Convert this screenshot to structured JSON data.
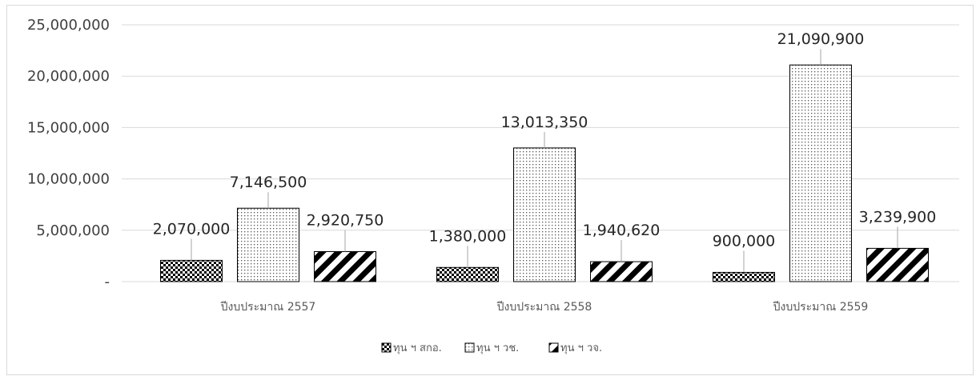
{
  "chart_data": {
    "type": "bar",
    "title": "",
    "xlabel": "",
    "ylabel": "",
    "ylim": [
      0,
      25000000
    ],
    "y_ticks": [
      {
        "value": 0,
        "label": "-"
      },
      {
        "value": 5000000,
        "label": "5,000,000"
      },
      {
        "value": 10000000,
        "label": "10,000,000"
      },
      {
        "value": 15000000,
        "label": "15,000,000"
      },
      {
        "value": 20000000,
        "label": "20,000,000"
      },
      {
        "value": 25000000,
        "label": "25,000,000"
      }
    ],
    "grid": true,
    "legend_position": "bottom",
    "categories": [
      "ปีงบประมาณ 2557",
      "ปีงบประมาณ 2558",
      "ปีงบประมาณ 2559"
    ],
    "series": [
      {
        "name": "ทุน ฯ สกอ.",
        "pattern": "checker",
        "values": [
          2070000,
          1380000,
          900000
        ],
        "labels": [
          "2,070,000",
          "1,380,000",
          "900,000"
        ]
      },
      {
        "name": "ทุน ฯ วช.",
        "pattern": "dots",
        "values": [
          7146500,
          13013350,
          21090900
        ],
        "labels": [
          "7,146,500",
          "13,013,350",
          "21,090,900"
        ]
      },
      {
        "name": "ทุน ฯ วจ.",
        "pattern": "diagonal",
        "values": [
          2920750,
          1940620,
          3239900
        ],
        "labels": [
          "2,920,750",
          "1,940,620",
          "3,239,900"
        ]
      }
    ],
    "colors": {
      "grid": "#d9d9d9",
      "bar": "#000000",
      "frame": "#d9d9d9"
    }
  }
}
